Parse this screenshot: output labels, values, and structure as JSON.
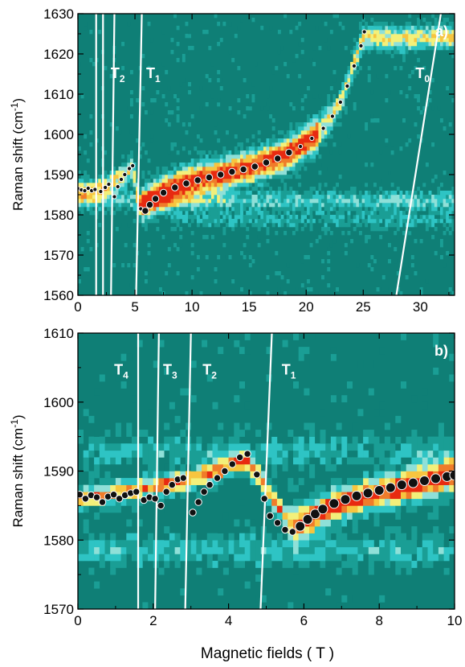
{
  "figure": {
    "xlabel": "Magnetic fields  ( T )"
  },
  "colors": {
    "background": "#0f7f76",
    "levels": [
      "#0f7f76",
      "#1a9e95",
      "#2ec4c4",
      "#8fe0d8",
      "#f3f07a",
      "#f7c53f",
      "#f07c2a",
      "#e82a10"
    ],
    "line": "#ffffff",
    "marker_fill": "#111111",
    "marker_edge": "#ffffff"
  },
  "chart_data": [
    {
      "type": "heatmap",
      "panel_label": "a)",
      "ylabel": "Raman shift (cm",
      "ylabel_sup": "-1",
      "ylabel_end": ")",
      "xlim": [
        0,
        33
      ],
      "ylim": [
        1560,
        1630
      ],
      "xticks": [
        0,
        5,
        10,
        15,
        20,
        25,
        30
      ],
      "yticks": [
        1560,
        1570,
        1580,
        1590,
        1600,
        1610,
        1620,
        1630
      ],
      "transitions": [
        {
          "x_bottom": 1.6,
          "x_top": 1.6,
          "label": ""
        },
        {
          "x_bottom": 2.2,
          "x_top": 2.2,
          "label": ""
        },
        {
          "x_bottom": 2.9,
          "x_top": 3.2,
          "label": "T",
          "sub": "2",
          "label_x": 3.5,
          "label_y": 1614
        },
        {
          "x_bottom": 5.1,
          "x_top": 5.6,
          "label": "T",
          "sub": "1",
          "label_x": 6.6,
          "label_y": 1614
        },
        {
          "x_bottom": 27.9,
          "x_top": 31.8,
          "label": "T",
          "sub": "0",
          "label_x": 30.2,
          "label_y": 1614
        }
      ],
      "peak_points": [
        [
          0,
          1586.5
        ],
        [
          0.3,
          1586.2
        ],
        [
          0.6,
          1586.0
        ],
        [
          0.9,
          1586.6
        ],
        [
          1.2,
          1586.0
        ],
        [
          1.5,
          1586.3
        ],
        [
          2.0,
          1585.8
        ],
        [
          2.4,
          1586.8
        ],
        [
          2.7,
          1587.6
        ],
        [
          3.2,
          1584.5
        ],
        [
          3.5,
          1587.0
        ],
        [
          3.8,
          1588.8
        ],
        [
          4.1,
          1590.0
        ],
        [
          4.5,
          1591.5
        ],
        [
          4.8,
          1592.2
        ],
        [
          5.5,
          1581.5
        ],
        [
          5.9,
          1581.0
        ],
        [
          6.3,
          1582.5
        ],
        [
          6.8,
          1584.0
        ],
        [
          7.5,
          1585.5
        ],
        [
          8.5,
          1586.8
        ],
        [
          9.5,
          1587.8
        ],
        [
          10.5,
          1588.6
        ],
        [
          11.5,
          1589.3
        ],
        [
          12.5,
          1590.0
        ],
        [
          13.5,
          1590.7
        ],
        [
          14.5,
          1591.3
        ],
        [
          15.5,
          1592.0
        ],
        [
          16.5,
          1593.0
        ],
        [
          17.5,
          1594.0
        ],
        [
          18.5,
          1595.5
        ],
        [
          19.5,
          1597.0
        ],
        [
          20.5,
          1599.0
        ],
        [
          21.5,
          1601.5
        ],
        [
          22.3,
          1604.5
        ],
        [
          23.0,
          1608.0
        ],
        [
          23.6,
          1612.0
        ],
        [
          24.2,
          1617.0
        ],
        [
          24.8,
          1622.0
        ],
        [
          25.1,
          1625.5
        ]
      ],
      "ridge": [
        [
          0,
          1586
        ],
        [
          2.5,
          1587
        ],
        [
          4.8,
          1591.5
        ],
        [
          5.5,
          1582
        ],
        [
          7,
          1585
        ],
        [
          10,
          1588.5
        ],
        [
          14,
          1591
        ],
        [
          18,
          1594.5
        ],
        [
          21,
          1600
        ],
        [
          23,
          1608
        ],
        [
          25,
          1624
        ]
      ],
      "bands": [
        {
          "y": 1583.5,
          "x_from": 0,
          "x_to": 33,
          "amp": 0.35
        },
        {
          "y": 1579.0,
          "x_from": 8,
          "x_to": 33,
          "amp": 0.22
        }
      ]
    },
    {
      "type": "heatmap",
      "panel_label": "b)",
      "ylabel": "Raman shift (cm",
      "ylabel_sup": "-1",
      "ylabel_end": ")",
      "xlim": [
        0,
        10
      ],
      "ylim": [
        1570,
        1610
      ],
      "xticks": [
        0,
        2,
        4,
        6,
        8,
        10
      ],
      "yticks": [
        1570,
        1580,
        1590,
        1600,
        1610
      ],
      "transitions": [
        {
          "x_bottom": 1.6,
          "x_top": 1.6,
          "label": "T",
          "sub": "4",
          "label_x": 1.15,
          "label_y": 1604
        },
        {
          "x_bottom": 2.05,
          "x_top": 2.15,
          "label": "T",
          "sub": "3",
          "label_x": 2.45,
          "label_y": 1604
        },
        {
          "x_bottom": 2.85,
          "x_top": 3.0,
          "label": "T",
          "sub": "2",
          "label_x": 3.5,
          "label_y": 1604
        },
        {
          "x_bottom": 4.85,
          "x_top": 5.15,
          "label": "T",
          "sub": "1",
          "label_x": 5.6,
          "label_y": 1604
        }
      ],
      "peak_points": [
        [
          0.05,
          1586.6
        ],
        [
          0.2,
          1586.0
        ],
        [
          0.35,
          1586.5
        ],
        [
          0.5,
          1586.2
        ],
        [
          0.65,
          1585.5
        ],
        [
          0.8,
          1586.3
        ],
        [
          0.95,
          1586.6
        ],
        [
          1.1,
          1586.0
        ],
        [
          1.25,
          1586.5
        ],
        [
          1.4,
          1586.8
        ],
        [
          1.55,
          1587.0
        ],
        [
          1.75,
          1585.8
        ],
        [
          1.9,
          1586.2
        ],
        [
          2.05,
          1586.0
        ],
        [
          2.2,
          1585.0
        ],
        [
          2.35,
          1587.0
        ],
        [
          2.5,
          1588.0
        ],
        [
          2.65,
          1588.8
        ],
        [
          2.8,
          1589.0
        ],
        [
          3.05,
          1584.0
        ],
        [
          3.2,
          1585.5
        ],
        [
          3.35,
          1587.0
        ],
        [
          3.5,
          1588.0
        ],
        [
          3.7,
          1589.0
        ],
        [
          3.9,
          1590.0
        ],
        [
          4.1,
          1591.0
        ],
        [
          4.3,
          1592.0
        ],
        [
          4.5,
          1592.5
        ],
        [
          4.75,
          1589.5
        ],
        [
          4.95,
          1586.0
        ],
        [
          5.1,
          1583.5
        ],
        [
          5.3,
          1582.5
        ],
        [
          5.5,
          1581.5
        ],
        [
          5.7,
          1581.2
        ],
        [
          5.9,
          1582.0
        ],
        [
          6.1,
          1583.0
        ],
        [
          6.3,
          1583.8
        ],
        [
          6.5,
          1584.5
        ],
        [
          6.8,
          1585.3
        ],
        [
          7.1,
          1585.9
        ],
        [
          7.4,
          1586.4
        ],
        [
          7.7,
          1586.8
        ],
        [
          8.0,
          1587.2
        ],
        [
          8.3,
          1587.6
        ],
        [
          8.6,
          1588.0
        ],
        [
          8.9,
          1588.3
        ],
        [
          9.2,
          1588.6
        ],
        [
          9.5,
          1588.9
        ],
        [
          9.8,
          1589.2
        ],
        [
          10.0,
          1589.4
        ]
      ],
      "ridge": [
        [
          0,
          1586
        ],
        [
          2.8,
          1588.5
        ],
        [
          4.5,
          1591.5
        ],
        [
          5.7,
          1582
        ],
        [
          7,
          1585.5
        ],
        [
          8.5,
          1587.5
        ],
        [
          10,
          1589.5
        ]
      ],
      "bands": [
        {
          "y": 1593.0,
          "x_from": 0,
          "x_to": 10,
          "amp": 0.25
        },
        {
          "y": 1578.5,
          "x_from": 0,
          "x_to": 10,
          "amp": 0.28
        }
      ]
    }
  ]
}
